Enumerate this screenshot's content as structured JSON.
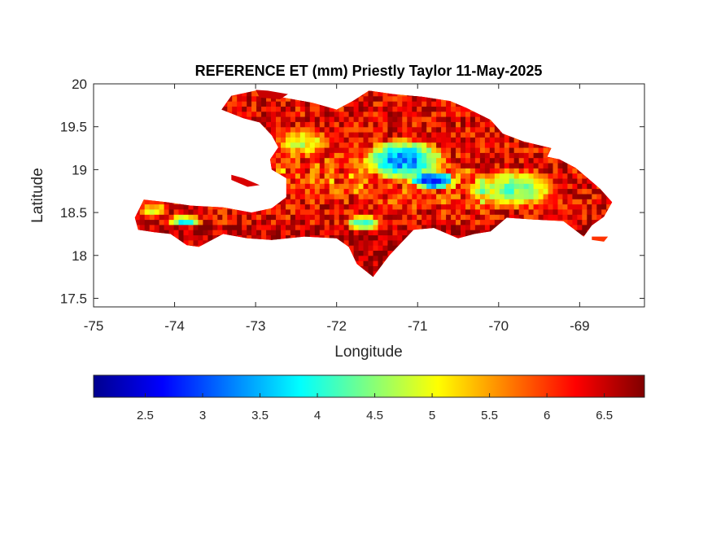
{
  "chart_data": {
    "type": "heatmap",
    "title": "REFERENCE ET (mm) Priestly Taylor 11-May-2025",
    "xlabel": "Longitude",
    "ylabel": "Latitude",
    "xlim": [
      -75,
      -68.2
    ],
    "ylim": [
      17.4,
      20
    ],
    "xticks": [
      -75,
      -74,
      -73,
      -72,
      -71,
      -70,
      -69
    ],
    "yticks": [
      17.5,
      18,
      18.5,
      19,
      19.5,
      20
    ],
    "xtick_labels": [
      "-75",
      "-74",
      "-73",
      "-72",
      "-71",
      "-70",
      "-69"
    ],
    "ytick_labels": [
      "17.5",
      "18",
      "18.5",
      "19",
      "19.5",
      "20"
    ],
    "colormap": "jet",
    "clim": [
      2.05,
      6.85
    ],
    "colorbar_ticks": [
      2.5,
      3,
      3.5,
      4,
      4.5,
      5,
      5.5,
      6,
      6.5
    ],
    "colorbar_tick_labels": [
      "2.5",
      "3",
      "3.5",
      "4",
      "4.5",
      "5",
      "5.5",
      "6",
      "6.5"
    ],
    "colorbar_location": "bottom",
    "grid": false,
    "ocean_color": "#ffffff",
    "land_outline": [
      [
        -74.45,
        18.3
      ],
      [
        -74.49,
        18.44
      ],
      [
        -74.38,
        18.65
      ],
      [
        -74.1,
        18.62
      ],
      [
        -73.8,
        18.58
      ],
      [
        -73.4,
        18.56
      ],
      [
        -73.05,
        18.5
      ],
      [
        -72.8,
        18.55
      ],
      [
        -72.62,
        18.68
      ],
      [
        -72.62,
        18.9
      ],
      [
        -72.8,
        19.0
      ],
      [
        -72.82,
        19.12
      ],
      [
        -72.72,
        19.26
      ],
      [
        -72.8,
        19.4
      ],
      [
        -72.95,
        19.55
      ],
      [
        -73.15,
        19.6
      ],
      [
        -73.42,
        19.7
      ],
      [
        -73.3,
        19.86
      ],
      [
        -73.0,
        19.92
      ],
      [
        -72.72,
        19.85
      ],
      [
        -72.3,
        19.78
      ],
      [
        -72.0,
        19.7
      ],
      [
        -71.8,
        19.8
      ],
      [
        -71.6,
        19.92
      ],
      [
        -71.3,
        19.88
      ],
      [
        -70.95,
        19.85
      ],
      [
        -70.6,
        19.8
      ],
      [
        -70.4,
        19.72
      ],
      [
        -70.1,
        19.58
      ],
      [
        -69.95,
        19.42
      ],
      [
        -69.7,
        19.33
      ],
      [
        -69.35,
        19.25
      ],
      [
        -69.4,
        19.15
      ],
      [
        -69.25,
        19.12
      ],
      [
        -69.05,
        19.02
      ],
      [
        -68.9,
        18.9
      ],
      [
        -68.75,
        18.78
      ],
      [
        -68.6,
        18.62
      ],
      [
        -68.7,
        18.45
      ],
      [
        -68.85,
        18.35
      ],
      [
        -68.95,
        18.22
      ],
      [
        -69.2,
        18.4
      ],
      [
        -69.6,
        18.42
      ],
      [
        -69.9,
        18.44
      ],
      [
        -70.1,
        18.28
      ],
      [
        -70.3,
        18.25
      ],
      [
        -70.5,
        18.2
      ],
      [
        -70.8,
        18.32
      ],
      [
        -71.05,
        18.3
      ],
      [
        -71.2,
        18.15
      ],
      [
        -71.35,
        18.0
      ],
      [
        -71.55,
        17.75
      ],
      [
        -71.75,
        17.9
      ],
      [
        -71.85,
        18.1
      ],
      [
        -72.0,
        18.2
      ],
      [
        -72.4,
        18.22
      ],
      [
        -72.8,
        18.18
      ],
      [
        -73.1,
        18.2
      ],
      [
        -73.4,
        18.25
      ],
      [
        -73.7,
        18.1
      ],
      [
        -73.85,
        18.12
      ],
      [
        -74.05,
        18.25
      ],
      [
        -74.25,
        18.27
      ],
      [
        -74.45,
        18.3
      ]
    ],
    "tortuga_outline": [
      [
        -73.0,
        19.93
      ],
      [
        -72.85,
        19.92
      ],
      [
        -72.6,
        19.88
      ],
      [
        -72.7,
        19.82
      ],
      [
        -72.95,
        19.84
      ],
      [
        -73.0,
        19.93
      ]
    ],
    "gonave_outline": [
      [
        -73.3,
        18.94
      ],
      [
        -73.15,
        18.9
      ],
      [
        -72.95,
        18.82
      ],
      [
        -73.1,
        18.8
      ],
      [
        -73.3,
        18.88
      ],
      [
        -73.3,
        18.94
      ]
    ],
    "saona_outline": [
      [
        -68.85,
        18.22
      ],
      [
        -68.65,
        18.22
      ],
      [
        -68.7,
        18.16
      ],
      [
        -68.85,
        18.18
      ],
      [
        -68.85,
        18.22
      ]
    ],
    "low_et_zones": [
      {
        "lon": -71.2,
        "lat": 19.1,
        "r_lon": 0.55,
        "r_lat": 0.25,
        "value": 3.4
      },
      {
        "lon": -70.85,
        "lat": 18.85,
        "r_lon": 0.3,
        "r_lat": 0.12,
        "value": 3.0
      },
      {
        "lon": -69.85,
        "lat": 18.75,
        "r_lon": 0.6,
        "r_lat": 0.25,
        "value": 4.4
      },
      {
        "lon": -73.9,
        "lat": 18.38,
        "r_lon": 0.25,
        "r_lat": 0.06,
        "value": 3.6
      },
      {
        "lon": -71.7,
        "lat": 18.35,
        "r_lon": 0.25,
        "r_lat": 0.1,
        "value": 3.8
      },
      {
        "lon": -72.45,
        "lat": 19.3,
        "r_lon": 0.35,
        "r_lat": 0.2,
        "value": 5.0
      },
      {
        "lon": -74.3,
        "lat": 18.5,
        "r_lon": 0.2,
        "r_lat": 0.1,
        "value": 5.0
      }
    ]
  }
}
